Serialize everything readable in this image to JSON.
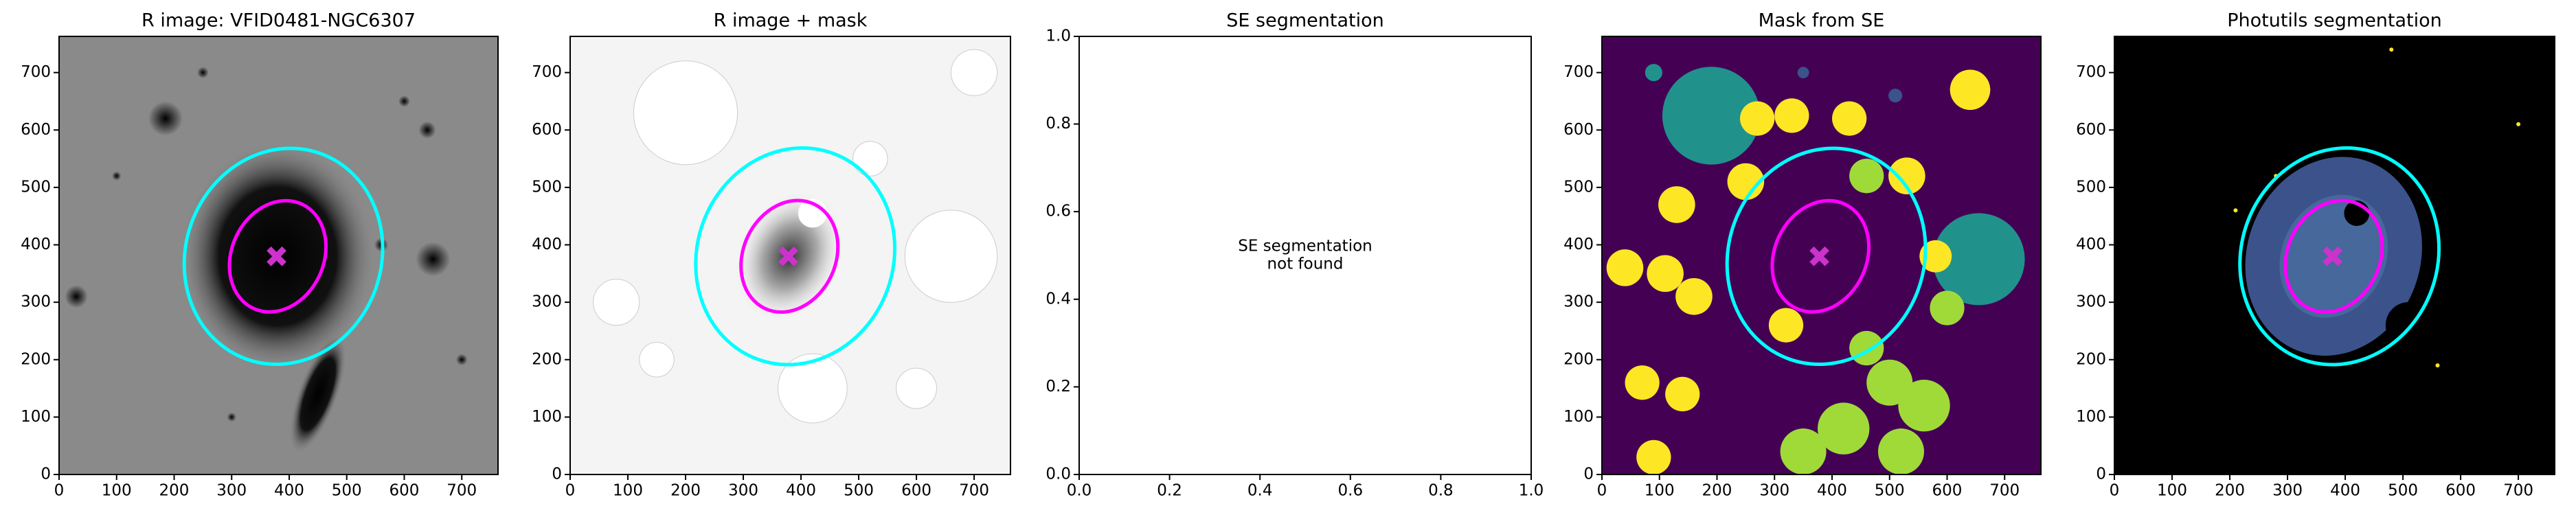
{
  "chart_data": [
    {
      "type": "image",
      "title": "R image: VFID0481-NGC6307",
      "background": "gray",
      "xlim": [
        0,
        763
      ],
      "ylim": [
        0,
        763
      ],
      "xticks": [
        0,
        100,
        200,
        300,
        400,
        500,
        600,
        700
      ],
      "yticks": [
        0,
        100,
        200,
        300,
        400,
        500,
        600,
        700
      ],
      "ellipses": [
        {
          "cx": 390,
          "cy": 380,
          "rx": 170,
          "ry": 190,
          "angle": 20,
          "color": "#00ffff"
        },
        {
          "cx": 380,
          "cy": 380,
          "rx": 80,
          "ry": 100,
          "angle": 25,
          "color": "#ff00ff"
        }
      ],
      "center": {
        "x": 378,
        "y": 380,
        "color": "#cc33cc"
      }
    },
    {
      "type": "image",
      "title": "R image + mask",
      "background": "mask",
      "xlim": [
        0,
        763
      ],
      "ylim": [
        0,
        763
      ],
      "xticks": [
        0,
        100,
        200,
        300,
        400,
        500,
        600,
        700
      ],
      "yticks": [
        0,
        100,
        200,
        300,
        400,
        500,
        600,
        700
      ],
      "ellipses": [
        {
          "cx": 390,
          "cy": 380,
          "rx": 170,
          "ry": 190,
          "angle": 20,
          "color": "#00ffff"
        },
        {
          "cx": 380,
          "cy": 380,
          "rx": 80,
          "ry": 100,
          "angle": 25,
          "color": "#ff00ff"
        }
      ],
      "center": {
        "x": 378,
        "y": 380,
        "color": "#cc33cc"
      }
    },
    {
      "type": "empty",
      "title": "SE segmentation",
      "annotation": [
        "SE segmentation",
        "not found"
      ],
      "xlim": [
        0,
        1
      ],
      "ylim": [
        0,
        1
      ],
      "xticks": [
        {
          "value": 0,
          "label": "0.0"
        },
        {
          "value": 0.2,
          "label": "0.2"
        },
        {
          "value": 0.4,
          "label": "0.4"
        },
        {
          "value": 0.6,
          "label": "0.6"
        },
        {
          "value": 0.8,
          "label": "0.8"
        },
        {
          "value": 1,
          "label": "1.0"
        }
      ],
      "yticks": [
        {
          "value": 0,
          "label": "0.0"
        },
        {
          "value": 0.2,
          "label": "0.2"
        },
        {
          "value": 0.4,
          "label": "0.4"
        },
        {
          "value": 0.6,
          "label": "0.6"
        },
        {
          "value": 0.8,
          "label": "0.8"
        },
        {
          "value": 1,
          "label": "1.0"
        }
      ]
    },
    {
      "type": "image",
      "title": "Mask from SE",
      "background": "segmap",
      "xlim": [
        0,
        763
      ],
      "ylim": [
        0,
        763
      ],
      "xticks": [
        0,
        100,
        200,
        300,
        400,
        500,
        600,
        700
      ],
      "yticks": [
        0,
        100,
        200,
        300,
        400,
        500,
        600,
        700
      ],
      "ellipses": [
        {
          "cx": 390,
          "cy": 380,
          "rx": 170,
          "ry": 190,
          "angle": 20,
          "color": "#00ffff"
        },
        {
          "cx": 380,
          "cy": 380,
          "rx": 80,
          "ry": 100,
          "angle": 25,
          "color": "#ff00ff"
        }
      ],
      "center": {
        "x": 378,
        "y": 380,
        "color": "#cc33cc"
      }
    },
    {
      "type": "image",
      "title": "Photutils segmentation",
      "background": "photutils",
      "xlim": [
        0,
        763
      ],
      "ylim": [
        0,
        763
      ],
      "xticks": [
        0,
        100,
        200,
        300,
        400,
        500,
        600,
        700
      ],
      "yticks": [
        0,
        100,
        200,
        300,
        400,
        500,
        600,
        700
      ],
      "ellipses": [
        {
          "cx": 390,
          "cy": 380,
          "rx": 170,
          "ry": 190,
          "angle": 20,
          "color": "#00ffff"
        },
        {
          "cx": 380,
          "cy": 380,
          "rx": 80,
          "ry": 100,
          "angle": 25,
          "color": "#ff00ff"
        }
      ],
      "center": {
        "x": 378,
        "y": 380,
        "color": "#cc33cc"
      }
    }
  ]
}
